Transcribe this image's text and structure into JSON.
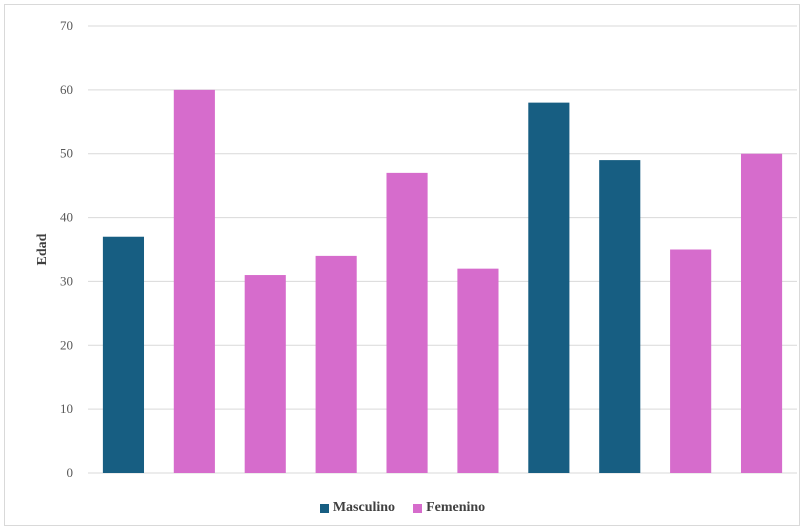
{
  "chart_data": {
    "type": "bar",
    "title": "",
    "xlabel": "",
    "ylabel": "Edad",
    "ylim": [
      0,
      70
    ],
    "yticks": [
      0,
      10,
      20,
      30,
      40,
      50,
      60,
      70
    ],
    "grid": true,
    "legend_position": "bottom",
    "series": [
      {
        "name": "Masculino",
        "color": "#175e82"
      },
      {
        "name": "Femenino",
        "color": "#d66ccc"
      }
    ],
    "bars": [
      {
        "value": 37,
        "series": "Masculino"
      },
      {
        "value": 60,
        "series": "Femenino"
      },
      {
        "value": 31,
        "series": "Femenino"
      },
      {
        "value": 34,
        "series": "Femenino"
      },
      {
        "value": 47,
        "series": "Femenino"
      },
      {
        "value": 32,
        "series": "Femenino"
      },
      {
        "value": 58,
        "series": "Masculino"
      },
      {
        "value": 49,
        "series": "Masculino"
      },
      {
        "value": 35,
        "series": "Femenino"
      },
      {
        "value": 50,
        "series": "Femenino"
      }
    ]
  }
}
